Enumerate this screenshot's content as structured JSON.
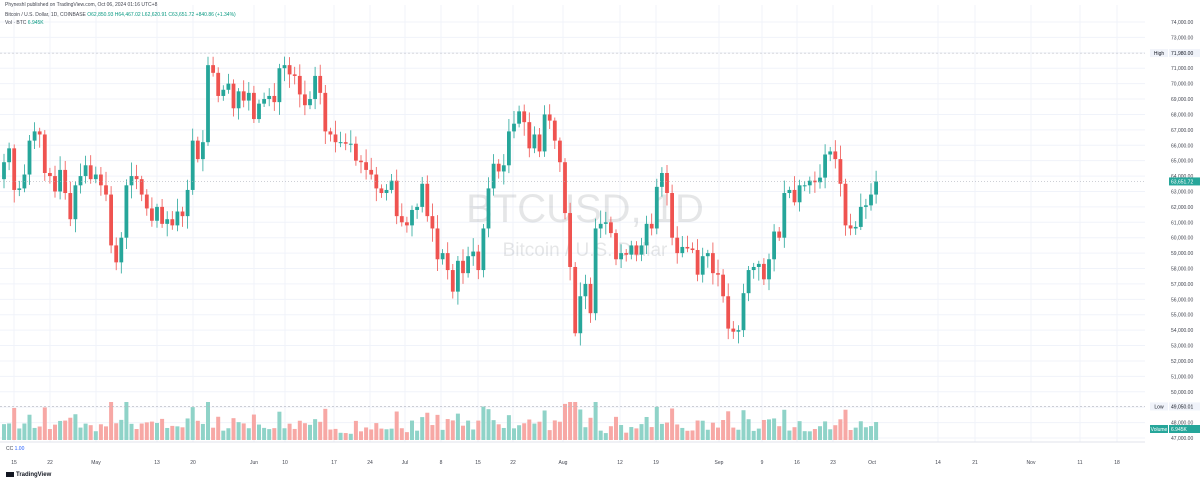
{
  "header": {
    "publisher": "Phyneshl published on TradingView.com, Oct 06, 2024 01:16 UTC+8",
    "symbol_desc": "Bitcoin / U.S. Dollar, 1D, COINBASE",
    "ohlc": "O62,850.93  H64,467.02  L62,620.91  C63,651.72  +840.86 (+1.34%)",
    "vol_label": "Vol · BTC",
    "vol_value": "6.945K"
  },
  "footer": {
    "cc_label": "CC",
    "cc_value": "1.00",
    "brand": "TradingView"
  },
  "watermark": {
    "symbol": "BTCUSD, 1D",
    "name": "Bitcoin / U.S. Dollar"
  },
  "colors": {
    "up": "#26a69a",
    "down": "#ef5350",
    "vol_up": "#8fd3c8",
    "vol_down": "#f7a8a5"
  },
  "chart_data": {
    "type": "candlestick",
    "y_ticks": [
      "74,000.00",
      "73,000.00",
      "72,000.00",
      "71,000.00",
      "70,000.00",
      "69,000.00",
      "68,000.00",
      "67,000.00",
      "66,000.00",
      "65,000.00",
      "64,000.00",
      "63,000.00",
      "62,000.00",
      "61,000.00",
      "60,000.00",
      "59,000.00",
      "58,000.00",
      "57,000.00",
      "56,000.00",
      "55,000.00",
      "54,000.00",
      "53,000.00",
      "52,000.00",
      "51,000.00",
      "50,000.00",
      "49,000.00",
      "48,000.00",
      "47,000.00"
    ],
    "ylim": [
      46800,
      74500
    ],
    "x_ticks": [
      "15",
      "22",
      "May",
      "13",
      "20",
      "Jun",
      "10",
      "17",
      "24",
      "Jul",
      "8",
      "15",
      "22",
      "Aug",
      "12",
      "19",
      "Sep",
      "9",
      "16",
      "23",
      "Oct",
      "14",
      "21",
      "Nov",
      "11",
      "18"
    ],
    "markers": {
      "high": {
        "label": "High",
        "value": "71,980.00",
        "price": 71980
      },
      "low": {
        "label": "Low",
        "value": "49,050.01",
        "price": 49050
      },
      "last": {
        "value": "63,651.72",
        "price": 63651.72
      },
      "volume": {
        "label": "Volume",
        "value": "6.945K"
      }
    },
    "closes": [
      64900,
      65800,
      63100,
      63200,
      64100,
      66300,
      66900,
      66700,
      64200,
      64000,
      63000,
      64400,
      62900,
      61200,
      63400,
      64000,
      64700,
      63800,
      64100,
      63400,
      62800,
      59500,
      58400,
      60000,
      63400,
      64000,
      63800,
      62800,
      61900,
      61100,
      62000,
      60900,
      61200,
      60800,
      61700,
      61400,
      63100,
      66300,
      65100,
      66200,
      71200,
      70700,
      69200,
      69600,
      70000,
      68400,
      69500,
      68900,
      69400,
      67700,
      68700,
      69000,
      69200,
      68800,
      71000,
      71200,
      70600,
      70500,
      69300,
      68600,
      69000,
      70500,
      69400,
      66900,
      66700,
      66200,
      66200,
      66100,
      66100,
      65000,
      64900,
      64400,
      64100,
      63200,
      62900,
      63100,
      63700,
      61400,
      61000,
      60800,
      61800,
      62000,
      63500,
      61400,
      60600,
      58600,
      59000,
      57900,
      56500,
      58500,
      57700,
      58800,
      59100,
      57900,
      60600,
      63200,
      64800,
      64300,
      64700,
      66900,
      67400,
      68200,
      67500,
      65800,
      66700,
      65600,
      68000,
      67600,
      66300,
      64900,
      61600,
      58100,
      53800,
      56200,
      57000,
      55100,
      60600,
      60900,
      61000,
      60300,
      58600,
      59000,
      58900,
      59500,
      58900,
      59500,
      60900,
      60600,
      63300,
      64200,
      62900,
      60000,
      59000,
      59400,
      59300,
      59200,
      57600,
      58800,
      59000,
      57700,
      57600,
      56200,
      54100,
      53900,
      54000,
      56400,
      57900,
      58100,
      58300,
      57300,
      58600,
      60400,
      60000,
      62900,
      63100,
      62300,
      63400,
      63400,
      63700,
      63600,
      63900,
      65400,
      65600,
      65100,
      63500,
      60800,
      60600,
      60700,
      62000,
      62100,
      62800,
      63651
    ]
  }
}
